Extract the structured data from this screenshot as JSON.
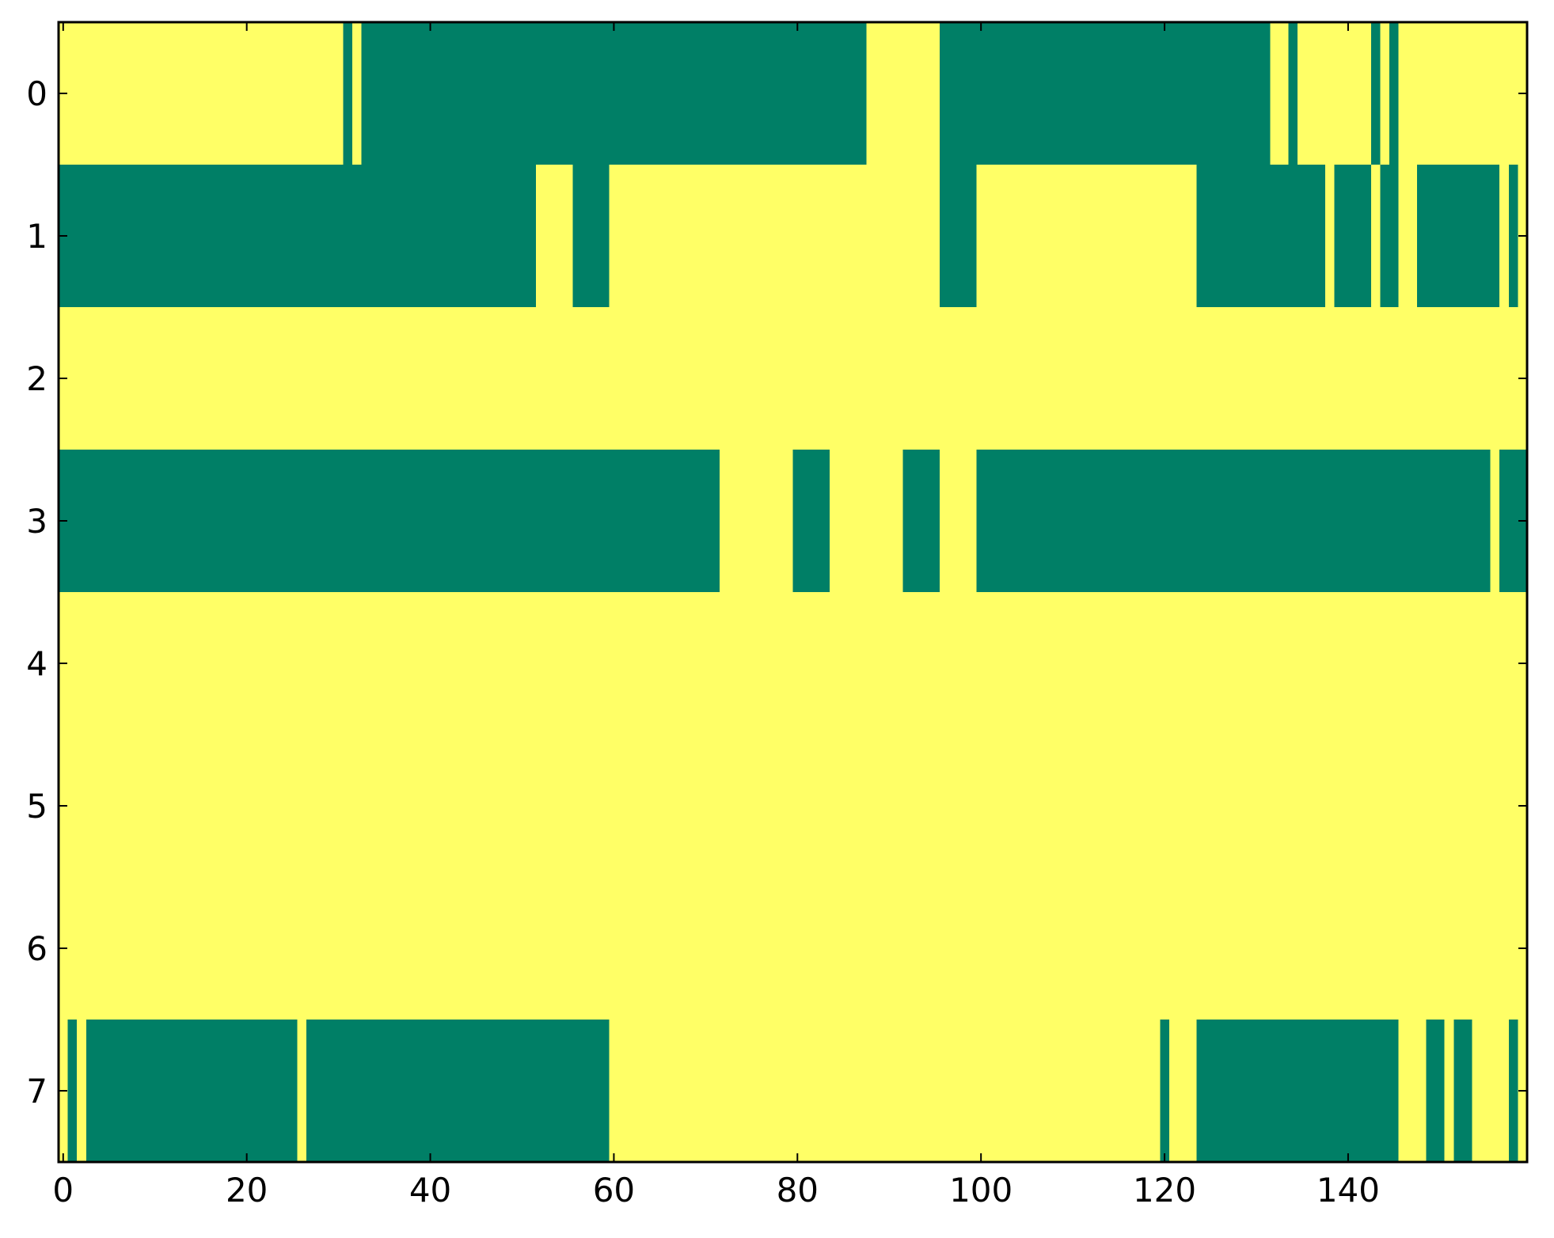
{
  "chart_data": {
    "type": "heatmap",
    "title": "",
    "xlabel": "",
    "ylabel": "",
    "x_range": [
      -0.5,
      159.5
    ],
    "y_range": [
      -0.5,
      7.5
    ],
    "y_inverted": true,
    "grid": false,
    "legend": "none",
    "x_ticks": [
      0,
      20,
      40,
      60,
      80,
      100,
      120,
      140
    ],
    "x_tick_labels": [
      "0",
      "20",
      "40",
      "60",
      "80",
      "100",
      "120",
      "140"
    ],
    "y_ticks": [
      0,
      1,
      2,
      3,
      4,
      5,
      6,
      7
    ],
    "y_tick_labels": [
      "0",
      "1",
      "2",
      "3",
      "4",
      "5",
      "6",
      "7"
    ],
    "colors": {
      "low": "#007f66",
      "high": "#ffff66",
      "axes": "#000000",
      "background": "#ffffff"
    },
    "encoding": "each cell is 0 (green) or 1 (yellow); runs lists inclusive column ranges [start, end] with value 0",
    "rows": [
      {
        "row": 0,
        "runs": [
          [
            31,
            31
          ],
          [
            33,
            87
          ],
          [
            96,
            131
          ],
          [
            134,
            134
          ],
          [
            143,
            143
          ],
          [
            145,
            145
          ]
        ]
      },
      {
        "row": 1,
        "runs": [
          [
            0,
            51
          ],
          [
            56,
            59
          ],
          [
            96,
            99
          ],
          [
            124,
            137
          ],
          [
            139,
            142
          ],
          [
            144,
            145
          ],
          [
            148,
            156
          ],
          [
            158,
            158
          ]
        ]
      },
      {
        "row": 2,
        "runs": []
      },
      {
        "row": 3,
        "runs": [
          [
            0,
            71
          ],
          [
            80,
            83
          ],
          [
            92,
            95
          ],
          [
            100,
            155
          ],
          [
            157,
            159
          ]
        ]
      },
      {
        "row": 4,
        "runs": []
      },
      {
        "row": 5,
        "runs": []
      },
      {
        "row": 6,
        "runs": []
      },
      {
        "row": 7,
        "runs": [
          [
            1,
            1
          ],
          [
            3,
            25
          ],
          [
            27,
            59
          ],
          [
            120,
            120
          ],
          [
            124,
            145
          ],
          [
            149,
            150
          ],
          [
            152,
            153
          ],
          [
            158,
            158
          ]
        ]
      }
    ]
  }
}
